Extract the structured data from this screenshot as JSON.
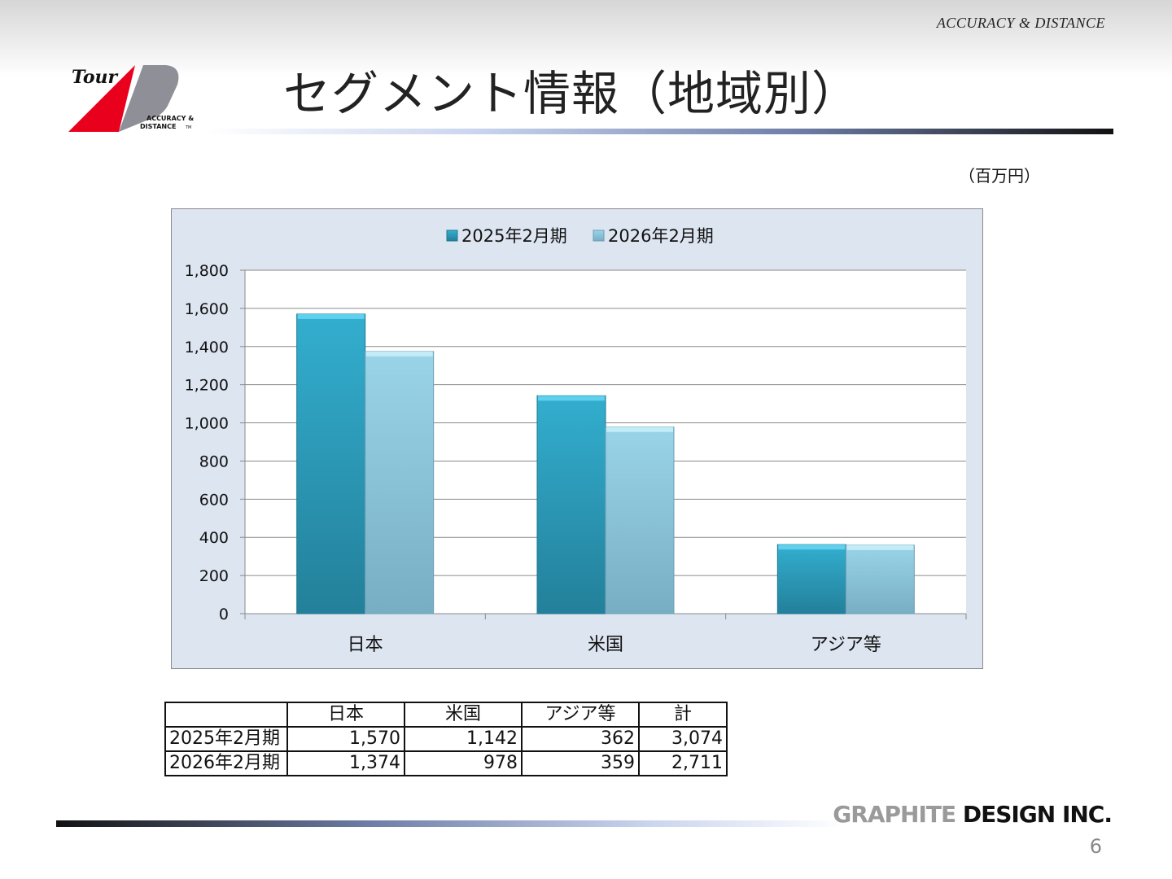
{
  "header": {
    "tagline": "ACCURACY  &  DISTANCE",
    "title": "セグメント情報（地域別）",
    "logo": {
      "brand": "Tour",
      "line1": "ACCURACY &",
      "line2": "DISTANCE",
      "tm": "TM",
      "colors": {
        "red": "#e8001c",
        "grey": "#8f8f97"
      }
    }
  },
  "unit_label": "（百万円）",
  "chart_data": {
    "type": "bar",
    "categories": [
      "日本",
      "米国",
      "アジア等"
    ],
    "series": [
      {
        "name": "2025年2月期",
        "values": [
          1570,
          1142,
          362
        ],
        "color": "#2d9fc0"
      },
      {
        "name": "2026年2月期",
        "values": [
          1374,
          978,
          359
        ],
        "color": "#8ec9df"
      }
    ],
    "ylim": [
      0,
      1800
    ],
    "yticks": [
      0,
      200,
      400,
      600,
      800,
      1000,
      1200,
      1400,
      1600,
      1800
    ],
    "ytick_labels": [
      "0",
      "200",
      "400",
      "600",
      "800",
      "1,000",
      "1,200",
      "1,400",
      "1,600",
      "1,800"
    ],
    "grid": true,
    "legend": "top-center",
    "background": "#dde5f1"
  },
  "table": {
    "headers": [
      "",
      "日本",
      "米国",
      "アジア等",
      "計"
    ],
    "rows": [
      [
        "2025年2月期",
        "1,570",
        "1,142",
        "362",
        "3,074"
      ],
      [
        "2026年2月期",
        "1,374",
        "978",
        "359",
        "2,711"
      ]
    ]
  },
  "footer": {
    "company_graphite": "GRAPHITE",
    "company_rest": " DESIGN INC.",
    "page_number": "6"
  }
}
